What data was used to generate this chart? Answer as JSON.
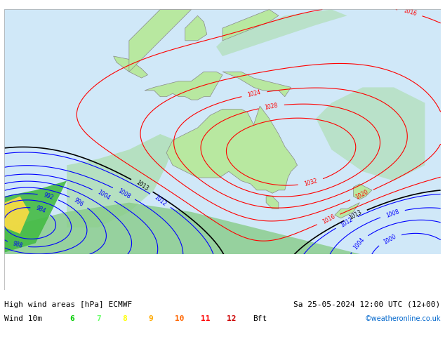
{
  "title_left": "High wind areas [hPa] ECMWF",
  "title_right": "Sa 25-05-2024 12:00 UTC (12+00)",
  "subtitle_left": "Wind 10m",
  "legend_values": [
    "6",
    "7",
    "8",
    "9",
    "10",
    "11",
    "12",
    "Bft"
  ],
  "legend_colors": [
    "#00cc00",
    "#66ff66",
    "#ffff00",
    "#ffaa00",
    "#ff6600",
    "#ff0000",
    "#cc0000",
    "#000000"
  ],
  "copyright": "©weatheronline.co.uk",
  "background_color": "#ffffff",
  "map_bg": "#e8f4e8",
  "figsize": [
    6.34,
    4.9
  ],
  "dpi": 100
}
